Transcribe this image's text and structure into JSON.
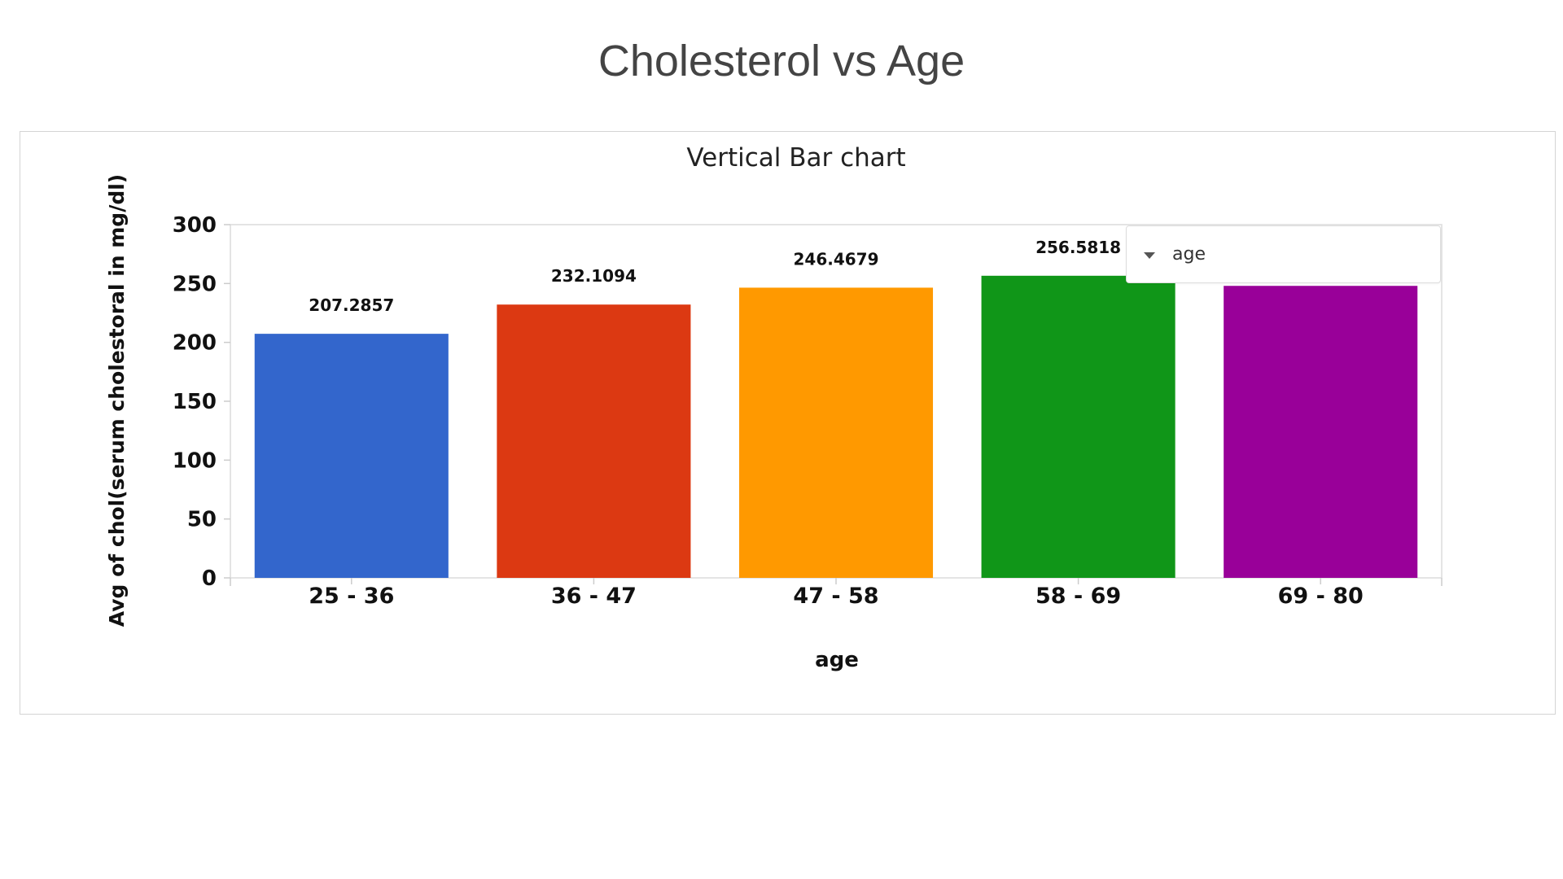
{
  "slide": {
    "title": "Cholesterol vs Age"
  },
  "legend": {
    "label": "age"
  },
  "chart_data": {
    "type": "bar",
    "title": "Vertical Bar chart",
    "xlabel": "age",
    "ylabel": "Avg of chol(serum cholestoral in mg/dl)",
    "categories": [
      "25 - 36",
      "36 - 47",
      "47 - 58",
      "58 - 69",
      "69 - 80"
    ],
    "values": [
      207.2857,
      232.1094,
      246.4679,
      256.5818,
      248
    ],
    "value_labels": [
      "207.2857",
      "232.1094",
      "246.4679",
      "256.5818",
      ""
    ],
    "colors": [
      "#3366cc",
      "#dc3912",
      "#ff9900",
      "#109618",
      "#990099"
    ],
    "ylim": [
      0,
      300
    ],
    "yticks": [
      0,
      50,
      100,
      150,
      200,
      250,
      300
    ],
    "grid": false,
    "legend_position": "top-right"
  }
}
